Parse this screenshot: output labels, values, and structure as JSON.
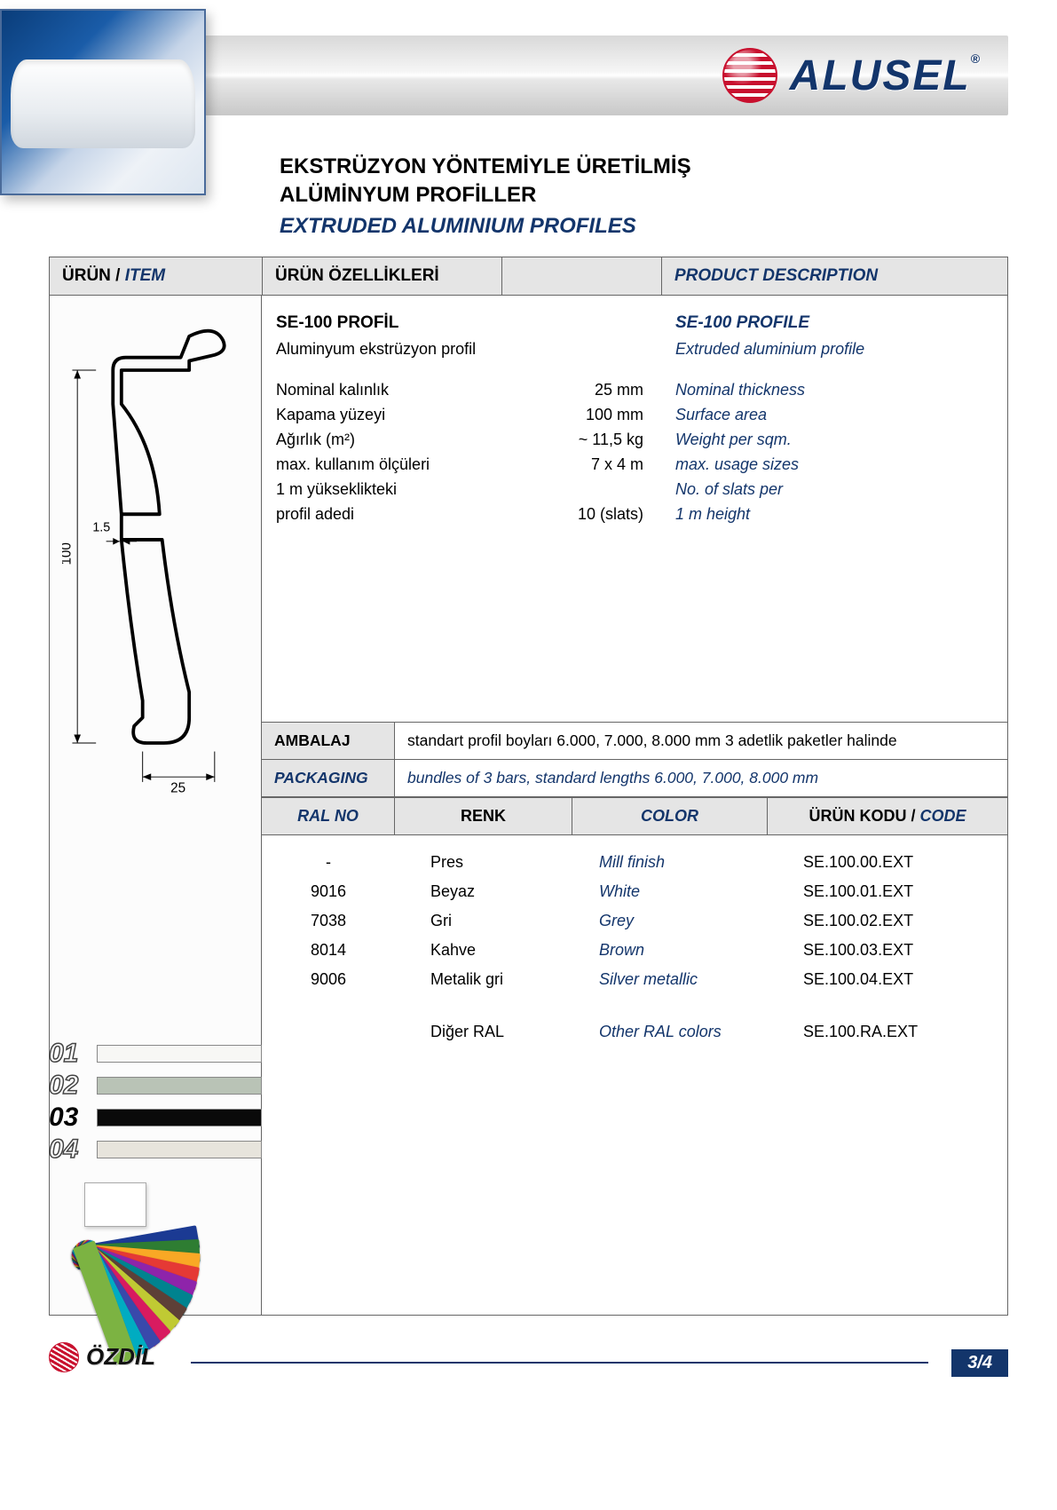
{
  "brand": {
    "name": "ALUSEL",
    "registered": "®"
  },
  "title": {
    "tr_line1": "EKSTRÜZYON YÖNTEMİYLE ÜRETİLMİŞ",
    "tr_line2": "ALÜMİNYUM PROFİLLER",
    "en": "EXTRUDED ALUMINIUM PROFILES"
  },
  "headers": {
    "urun_tr": "ÜRÜN",
    "urun_en": "ITEM",
    "ozellik_tr": "ÜRÜN ÖZELLİKLERİ",
    "desc_en": "PRODUCT DESCRIPTION"
  },
  "product": {
    "name_tr": "SE-100 PROFİL",
    "sub_tr": "Aluminyum ekstrüzyon profil",
    "name_en": "SE-100 PROFILE",
    "sub_en": "Extruded aluminium profile"
  },
  "specs": {
    "rows": [
      {
        "tr": "Nominal kalınlık",
        "val": "25 mm",
        "en": "Nominal thickness"
      },
      {
        "tr": "Kapama yüzeyi",
        "val": "100 mm",
        "en": "Surface area"
      },
      {
        "tr": "Ağırlık (m²)",
        "val": "~ 11,5 kg",
        "en": "Weight per sqm."
      },
      {
        "tr": "max. kullanım ölçüleri",
        "val": "7 x 4 m",
        "en": "max. usage sizes"
      },
      {
        "tr": "1 m yükseklikteki",
        "val": "",
        "en": "No. of slats per"
      },
      {
        "tr": "profil adedi",
        "val": "10 (slats)",
        "en": "1 m height"
      }
    ]
  },
  "drawing": {
    "height_label": "100",
    "width_label": "25",
    "wall_label": "1.5"
  },
  "packaging": {
    "label_tr": "AMBALAJ",
    "text_tr": "standart profil boyları 6.000, 7.000, 8.000 mm 3 adetlik paketler halinde",
    "label_en": "PACKAGING",
    "text_en": "bundles of 3 bars, standard lengths 6.000, 7.000, 8.000 mm"
  },
  "color_table": {
    "headers": {
      "ral": "RAL NO",
      "renk": "RENK",
      "color": "COLOR",
      "code_tr": "ÜRÜN KODU",
      "code_en": "CODE"
    },
    "rows": [
      {
        "ral": "-",
        "renk": "Pres",
        "color": "Mill finish",
        "code": "SE.100.00.EXT"
      },
      {
        "ral": "9016",
        "renk": "Beyaz",
        "color": "White",
        "code": "SE.100.01.EXT"
      },
      {
        "ral": "7038",
        "renk": "Gri",
        "color": "Grey",
        "code": "SE.100.02.EXT"
      },
      {
        "ral": "8014",
        "renk": "Kahve",
        "color": "Brown",
        "code": "SE.100.03.EXT"
      },
      {
        "ral": "9006",
        "renk": "Metalik gri",
        "color": "Silver metallic",
        "code": "SE.100.04.EXT"
      }
    ],
    "other": {
      "ral": "",
      "renk": "Diğer RAL",
      "color": "Other RAL colors",
      "code": "SE.100.RA.EXT"
    }
  },
  "swatches": [
    {
      "num": "01",
      "outline": true,
      "bar": "#f7f7f5"
    },
    {
      "num": "02",
      "outline": true,
      "bar": "#b9c3b6"
    },
    {
      "num": "03",
      "outline": false,
      "bar": "#0a0a0a"
    },
    {
      "num": "04",
      "outline": true,
      "bar": "#e7e4dc"
    }
  ],
  "fan_colors": [
    "#1b3a93",
    "#2e7d32",
    "#f9a825",
    "#e53935",
    "#8e24aa",
    "#00838f",
    "#5d4037",
    "#c0ca33",
    "#d81b60",
    "#3949ab",
    "#00acc1",
    "#7cb342"
  ],
  "footer": {
    "vendor": "ÖZDİL",
    "page": "3/4"
  },
  "colors": {
    "brand_blue": "#13356b",
    "brand_red": "#c8102e",
    "grey_bg": "#e5e5e5",
    "border": "#666666"
  }
}
